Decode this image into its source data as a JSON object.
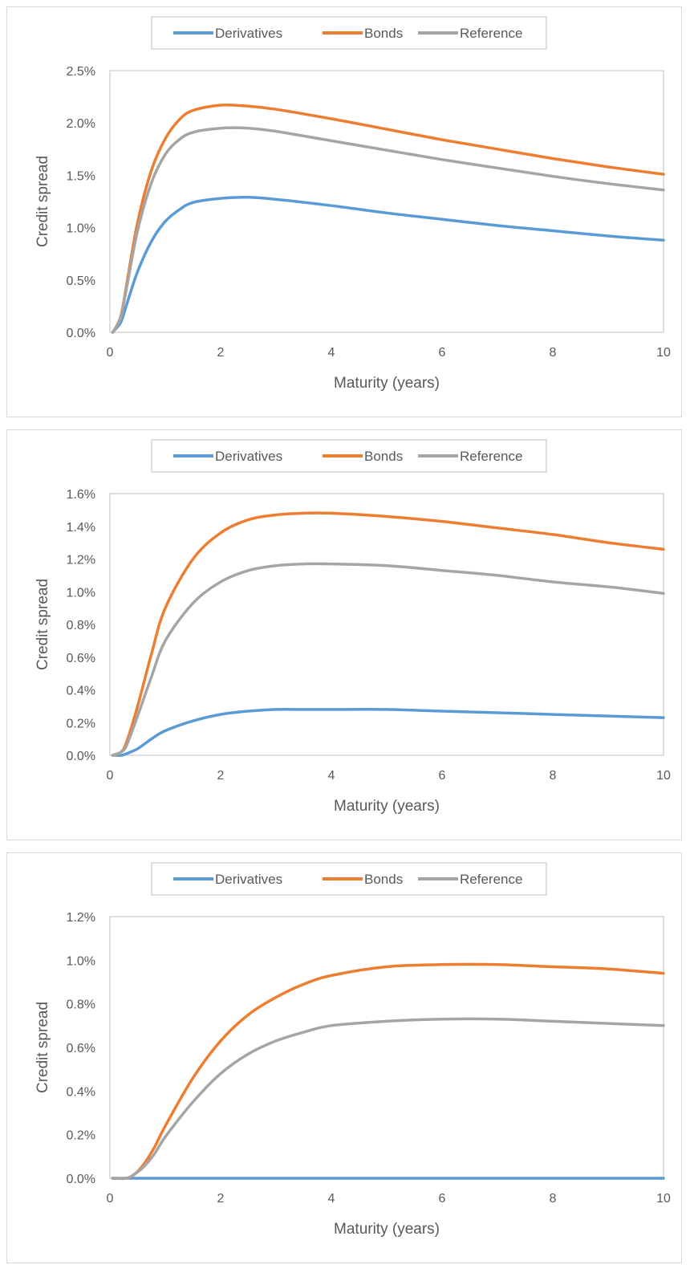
{
  "colors": {
    "Derivatives": "#5b9bd5",
    "Bonds": "#ed7d31",
    "Reference": "#a5a5a5",
    "axis": "#bfbfbf",
    "text": "#595959"
  },
  "chart_data": [
    {
      "type": "line",
      "title": "",
      "xlabel": "Maturity (years)",
      "ylabel": "Credit spread",
      "xlim": [
        0,
        10
      ],
      "ylim": [
        0,
        0.025
      ],
      "x_ticks": [
        0,
        2,
        4,
        6,
        8,
        10
      ],
      "y_ticks": [
        0,
        0.005,
        0.01,
        0.015,
        0.02,
        0.025
      ],
      "y_tick_labels": [
        "0.0%",
        "0.5%",
        "1.0%",
        "1.5%",
        "2.0%",
        "2.5%"
      ],
      "legend": "top",
      "grid": false,
      "x": [
        0.05,
        0.1,
        0.2,
        0.3,
        0.5,
        0.75,
        1,
        1.25,
        1.5,
        2,
        2.5,
        3,
        4,
        5,
        6,
        7,
        8,
        9,
        10
      ],
      "series": [
        {
          "name": "Derivatives",
          "values": [
            0.0,
            0.0003,
            0.001,
            0.0026,
            0.0058,
            0.0087,
            0.0106,
            0.0117,
            0.0124,
            0.0128,
            0.0129,
            0.0127,
            0.0121,
            0.0114,
            0.0108,
            0.0102,
            0.0097,
            0.0092,
            0.0088
          ]
        },
        {
          "name": "Bonds",
          "values": [
            0.0,
            0.0004,
            0.0016,
            0.0045,
            0.0105,
            0.0155,
            0.0185,
            0.0203,
            0.0212,
            0.0217,
            0.0216,
            0.0213,
            0.0204,
            0.0194,
            0.0184,
            0.0175,
            0.0166,
            0.0158,
            0.0151
          ]
        },
        {
          "name": "Reference",
          "values": [
            0.0,
            0.0004,
            0.0015,
            0.0042,
            0.0097,
            0.0143,
            0.017,
            0.0184,
            0.0191,
            0.0195,
            0.0195,
            0.0192,
            0.0183,
            0.0174,
            0.0165,
            0.0157,
            0.0149,
            0.0142,
            0.0136
          ]
        }
      ]
    },
    {
      "type": "line",
      "title": "",
      "xlabel": "Maturity (years)",
      "ylabel": "Credit spread",
      "xlim": [
        0,
        10
      ],
      "ylim": [
        0,
        0.016
      ],
      "x_ticks": [
        0,
        2,
        4,
        6,
        8,
        10
      ],
      "y_ticks": [
        0,
        0.002,
        0.004,
        0.006,
        0.008,
        0.01,
        0.012,
        0.014,
        0.016
      ],
      "y_tick_labels": [
        "0.0%",
        "0.2%",
        "0.4%",
        "0.6%",
        "0.8%",
        "1.0%",
        "1.2%",
        "1.4%",
        "1.6%"
      ],
      "legend": "top",
      "grid": false,
      "x": [
        0.05,
        0.2,
        0.3,
        0.5,
        0.75,
        1,
        1.5,
        2,
        2.5,
        3,
        3.5,
        4,
        5,
        6,
        7,
        8,
        9,
        10
      ],
      "series": [
        {
          "name": "Derivatives",
          "values": [
            0.0,
            0.0,
            0.0001,
            0.0004,
            0.001,
            0.0015,
            0.0021,
            0.0025,
            0.0027,
            0.0028,
            0.0028,
            0.0028,
            0.0028,
            0.0027,
            0.0026,
            0.0025,
            0.0024,
            0.0023
          ]
        },
        {
          "name": "Bonds",
          "values": [
            0.0,
            0.0002,
            0.0008,
            0.003,
            0.0062,
            0.009,
            0.012,
            0.0136,
            0.0144,
            0.0147,
            0.0148,
            0.0148,
            0.0146,
            0.0143,
            0.0139,
            0.0135,
            0.013,
            0.0126
          ]
        },
        {
          "name": "Reference",
          "values": [
            0.0,
            0.0002,
            0.0006,
            0.0024,
            0.0048,
            0.007,
            0.0093,
            0.0106,
            0.0113,
            0.0116,
            0.0117,
            0.0117,
            0.0116,
            0.0113,
            0.011,
            0.0106,
            0.0103,
            0.0099
          ]
        }
      ]
    },
    {
      "type": "line",
      "title": "",
      "xlabel": "Maturity (years)",
      "ylabel": "Credit spread",
      "xlim": [
        0,
        10
      ],
      "ylim": [
        0,
        0.012
      ],
      "x_ticks": [
        0,
        2,
        4,
        6,
        8,
        10
      ],
      "y_ticks": [
        0,
        0.002,
        0.004,
        0.006,
        0.008,
        0.01,
        0.012
      ],
      "y_tick_labels": [
        "0.0%",
        "0.2%",
        "0.4%",
        "0.6%",
        "0.8%",
        "1.0%",
        "1.2%"
      ],
      "legend": "top",
      "grid": false,
      "x": [
        0.05,
        0.3,
        0.45,
        0.6,
        0.8,
        1,
        1.5,
        2,
        2.5,
        3,
        3.5,
        4,
        5,
        6,
        7,
        8,
        9,
        10
      ],
      "series": [
        {
          "name": "Derivatives",
          "values": [
            0,
            0,
            0,
            0,
            0,
            0,
            0,
            0,
            0,
            0,
            0,
            0,
            0,
            0,
            0,
            0,
            0,
            0
          ]
        },
        {
          "name": "Bonds",
          "values": [
            0.0,
            0.0,
            0.0002,
            0.0006,
            0.0014,
            0.0024,
            0.0046,
            0.0063,
            0.0075,
            0.0083,
            0.0089,
            0.0093,
            0.0097,
            0.0098,
            0.0098,
            0.0097,
            0.0096,
            0.0094
          ]
        },
        {
          "name": "Reference",
          "values": [
            0.0,
            0.0,
            0.0002,
            0.0005,
            0.0011,
            0.0019,
            0.0035,
            0.0048,
            0.0057,
            0.0063,
            0.0067,
            0.007,
            0.0072,
            0.0073,
            0.0073,
            0.0072,
            0.0071,
            0.007
          ]
        }
      ]
    }
  ]
}
